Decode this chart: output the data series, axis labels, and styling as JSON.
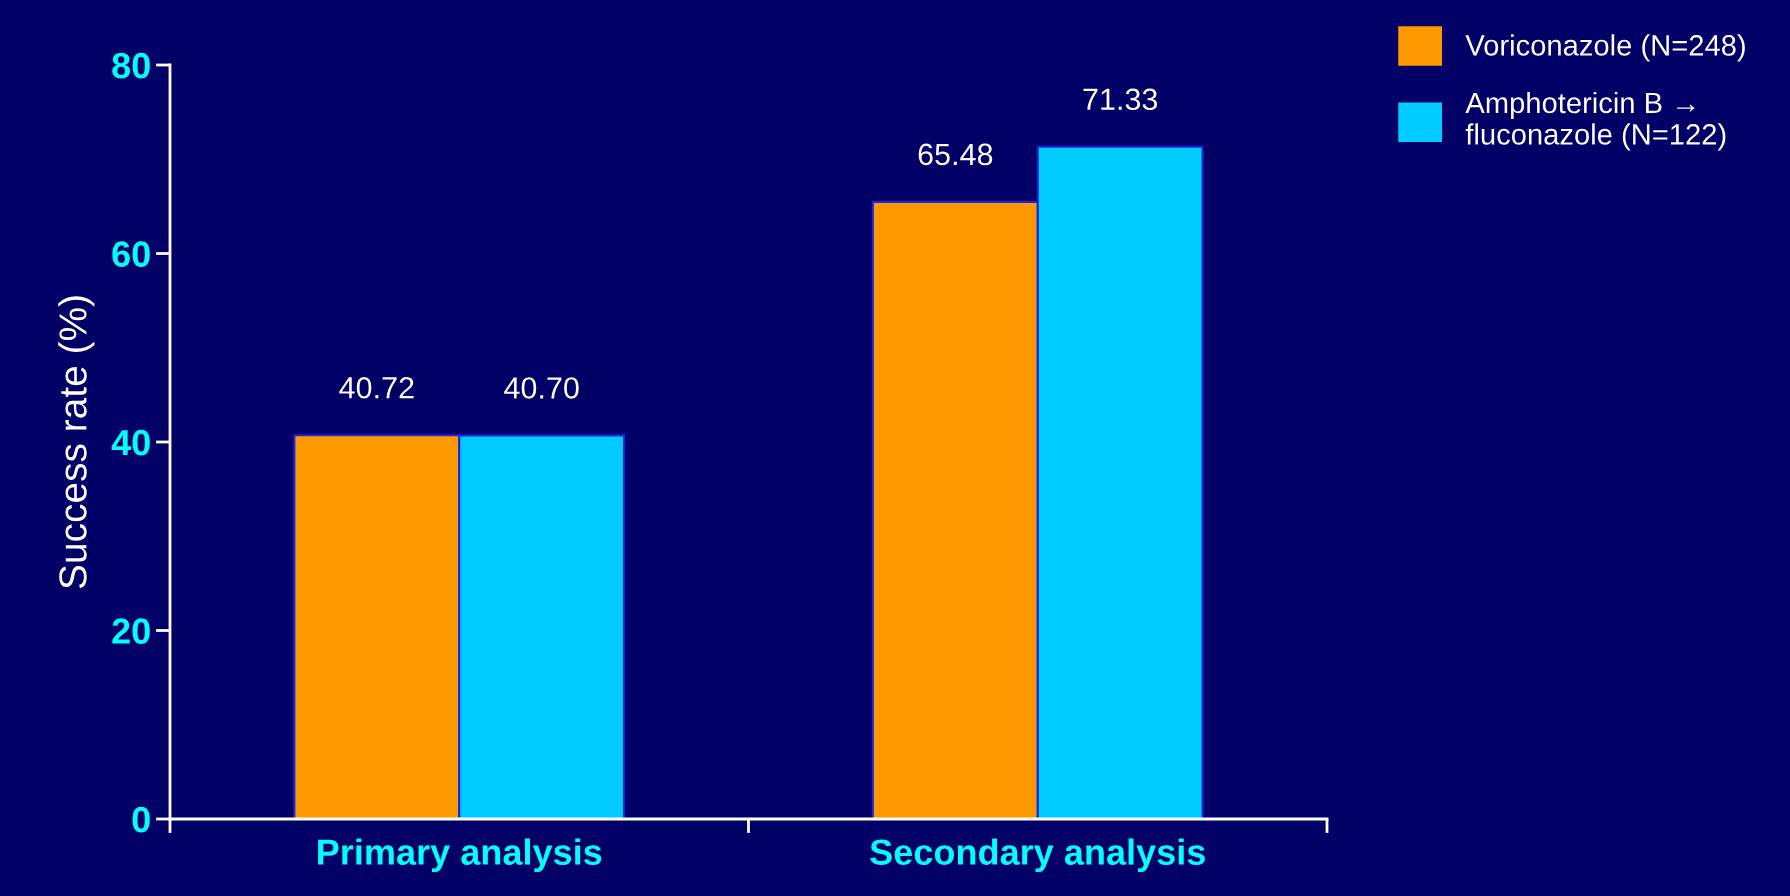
{
  "chart_data": {
    "type": "bar",
    "ylabel": "Success rate (%)",
    "categories": [
      "Primary analysis",
      "Secondary analysis"
    ],
    "series": [
      {
        "name": "Voriconazole (N=248)",
        "color": "#ff9900",
        "values": [
          40.72,
          65.48
        ],
        "value_labels": [
          "40.72",
          "65.48"
        ]
      },
      {
        "name": "Amphotericin B →\nfluconazole (N=122)",
        "color": "#00ccff",
        "values": [
          40.7,
          71.33
        ],
        "value_labels": [
          "40.70",
          "71.33"
        ]
      }
    ],
    "ylim": [
      0,
      80
    ],
    "yticks": [
      0,
      20,
      40,
      60,
      80
    ],
    "legend": "top right",
    "grid": false
  }
}
